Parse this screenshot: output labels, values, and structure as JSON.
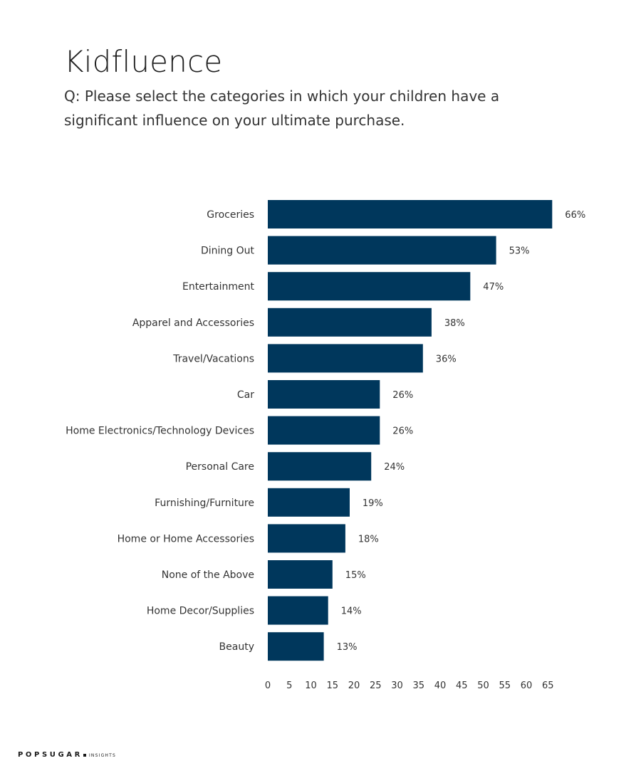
{
  "header": {
    "title": "Kidfluence",
    "subtitle": "Q: Please select the categories in which your children have a significant influence on your ultimate purchase."
  },
  "footer": {
    "logo_main": "POPSUGAR",
    "logo_sub": "INSIGHTS"
  },
  "colors": {
    "bar": "#00375c",
    "text": "#333333"
  },
  "chart_data": {
    "type": "bar",
    "orientation": "horizontal",
    "title": "Kidfluence",
    "subtitle": "Q: Please select the categories in which your children have a significant influence on your ultimate purchase.",
    "categories": [
      "Groceries",
      "Dining Out",
      "Entertainment",
      "Apparel and Accessories",
      "Travel/Vacations",
      "Car",
      "Home Electronics/Technology Devices",
      "Personal Care",
      "Furnishing/Furniture",
      "Home or Home Accessories",
      "None of the Above",
      "Home Decor/Supplies",
      "Beauty"
    ],
    "values": [
      66,
      53,
      47,
      38,
      36,
      26,
      26,
      24,
      19,
      18,
      15,
      14,
      13
    ],
    "value_labels": [
      "66%",
      "53%",
      "47%",
      "38%",
      "36%",
      "26%",
      "26%",
      "24%",
      "19%",
      "18%",
      "15%",
      "14%",
      "13%"
    ],
    "x_ticks": [
      0,
      5,
      10,
      15,
      20,
      25,
      30,
      35,
      40,
      45,
      50,
      55,
      60,
      65
    ],
    "xlim": [
      0,
      66
    ],
    "xlabel": "",
    "ylabel": "",
    "grid": false,
    "legend": "none"
  }
}
